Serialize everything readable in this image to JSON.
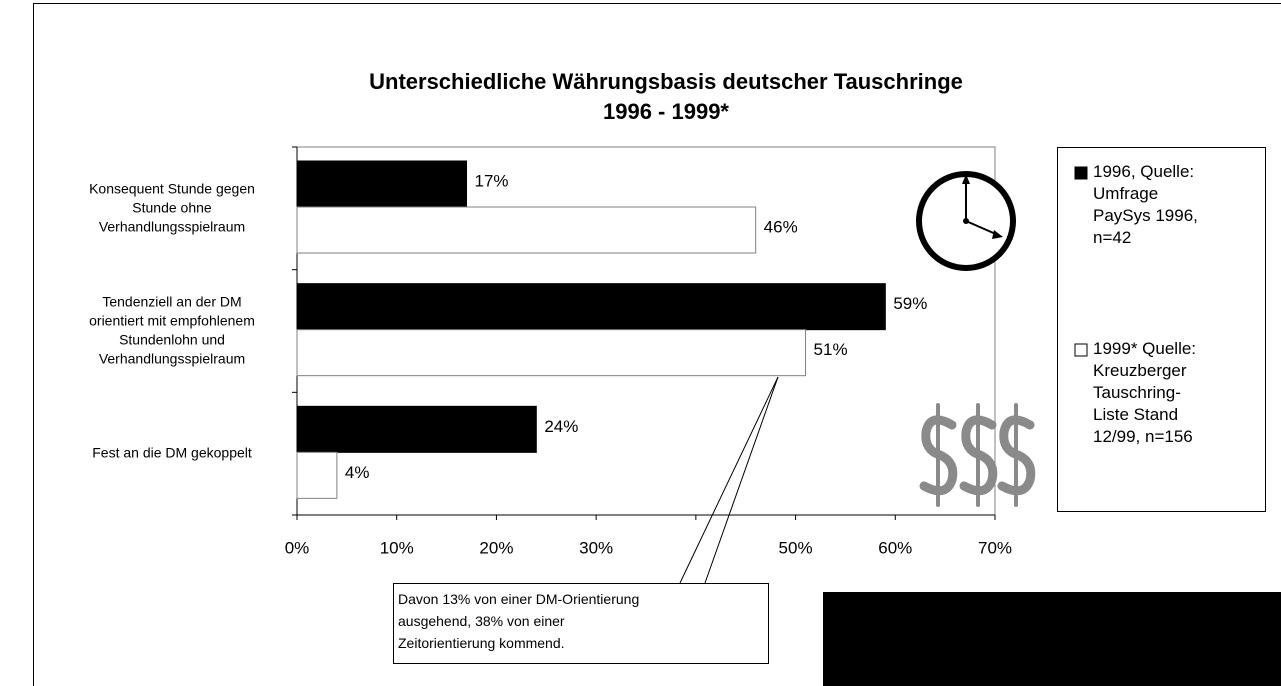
{
  "chart_data": {
    "type": "hbar",
    "title": "Unterschiedliche Währungsbasis deutscher Tauschringe\n1996 - 1999*",
    "categories": [
      "Konsequent Stunde gegen\nStunde ohne\nVerhandlungsspielraum",
      "Tendenziell an der DM\norientiert mit empfohlenem\nStundenlohn und\nVerhandlungsspielraum",
      "Fest an die DM gekoppelt"
    ],
    "series": [
      {
        "name": "1996, Quelle:\nUmfrage\nPaySys 1996,\nn=42",
        "color": "#000000",
        "values": [
          17,
          59,
          24
        ],
        "value_labels": [
          "17%",
          "59%",
          "24%"
        ]
      },
      {
        "name": "1999* Quelle:\nKreuzberger\nTauschring-\nListe Stand\n12/99, n=156",
        "color": "#ffffff",
        "values": [
          46,
          51,
          4
        ],
        "value_labels": [
          "46%",
          "51%",
          "4%"
        ]
      }
    ],
    "xlim": [
      0,
      70
    ],
    "xticks": [
      {
        "value": 0,
        "label": "0%"
      },
      {
        "value": 10,
        "label": "10%"
      },
      {
        "value": 20,
        "label": "20%"
      },
      {
        "value": 30,
        "label": "30%"
      },
      {
        "value": 40,
        "label": null
      },
      {
        "value": 50,
        "label": "50%"
      },
      {
        "value": 60,
        "label": "60%"
      },
      {
        "value": 70,
        "label": "70%"
      }
    ],
    "annotations": [
      "Davon 13% von einer DM-Orientierung\nausgehend, 38% von einer\nZeitorientierung kommend."
    ]
  }
}
